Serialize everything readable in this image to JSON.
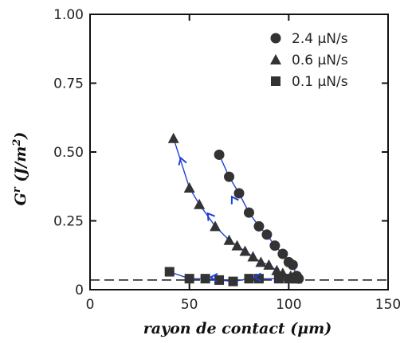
{
  "chart_data": {
    "type": "scatter",
    "xlabel": "rayon de contact (μm)",
    "ylabel": "G",
    "ylabel_sup": "r",
    "ylabel_units": " (J/m",
    "ylabel_units_sup": "2",
    "ylabel_units_end": ")",
    "xlim": [
      0,
      150
    ],
    "ylim": [
      0,
      1.0
    ],
    "x_ticks": [
      0,
      50,
      100,
      150
    ],
    "x_tick_labels": [
      "0",
      "50",
      "100",
      "150"
    ],
    "y_ticks": [
      0,
      0.25,
      0.5,
      0.75,
      1.0
    ],
    "y_tick_labels": [
      "0",
      "0.25",
      "0.50",
      "0.75",
      "1.00"
    ],
    "reference_line_y": 0.035,
    "fit_line_color": "#1f3fd6",
    "marker_color": "#333333",
    "legend_position": "top-right",
    "series": [
      {
        "name": "2.4 μN/s",
        "marker": "circle",
        "x": [
          65,
          70,
          75,
          80,
          85,
          89,
          93,
          97,
          100,
          102,
          104,
          105
        ],
        "y": [
          0.49,
          0.41,
          0.35,
          0.28,
          0.23,
          0.2,
          0.16,
          0.13,
          0.1,
          0.09,
          0.05,
          0.04
        ]
      },
      {
        "name": "0.6 μN/s",
        "marker": "triangle",
        "x": [
          42,
          50,
          55,
          63,
          70,
          74,
          78,
          82,
          86,
          90,
          94,
          97,
          101,
          104
        ],
        "y": [
          0.55,
          0.37,
          0.31,
          0.23,
          0.18,
          0.16,
          0.14,
          0.12,
          0.1,
          0.09,
          0.07,
          0.06,
          0.05,
          0.04
        ]
      },
      {
        "name": "0.1 μN/s",
        "marker": "square",
        "x": [
          40,
          50,
          58,
          65,
          72,
          80,
          85,
          95,
          100,
          104
        ],
        "y": [
          0.065,
          0.04,
          0.04,
          0.035,
          0.03,
          0.04,
          0.04,
          0.04,
          0.04,
          0.04
        ]
      }
    ],
    "arrows": [
      {
        "series": 0,
        "x": 72,
        "y": 0.33
      },
      {
        "series": 1,
        "x": 46,
        "y": 0.47
      },
      {
        "series": 1,
        "x": 60,
        "y": 0.27
      },
      {
        "series": 2,
        "x": 62,
        "y": 0.045
      },
      {
        "series": 2,
        "x": 84,
        "y": 0.045
      }
    ]
  }
}
